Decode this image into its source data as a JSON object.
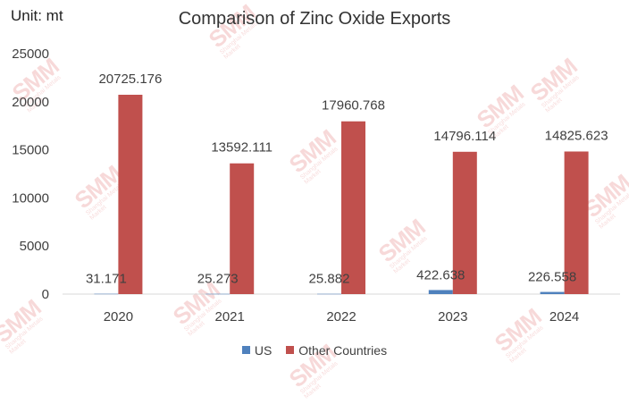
{
  "unit": "Unit: mt",
  "watermark": {
    "logo": "SMM",
    "tagline": "Shanghai Metals Market"
  },
  "chart_data": {
    "type": "bar",
    "title": "Comparison of Zinc Oxide Exports",
    "categories": [
      "2020",
      "2021",
      "2022",
      "2023",
      "2024"
    ],
    "series": [
      {
        "name": "US",
        "color": "#4f81bd",
        "values": [
          31.171,
          25.273,
          25.882,
          422.638,
          226.558
        ],
        "labels": [
          "31.171",
          "25.273",
          "25.882",
          "422.638",
          "226.558"
        ]
      },
      {
        "name": "Other Countries",
        "color": "#c0504d",
        "values": [
          20725.176,
          13592.111,
          17960.768,
          14796.114,
          14825.623
        ],
        "labels": [
          "20725.176",
          "13592.111",
          "17960.768",
          "14796.114",
          "14825.623"
        ]
      }
    ],
    "ylim": [
      0,
      25000
    ],
    "yticks": [
      0,
      5000,
      10000,
      15000,
      20000,
      25000
    ],
    "grid": false,
    "legend": "bottom"
  }
}
